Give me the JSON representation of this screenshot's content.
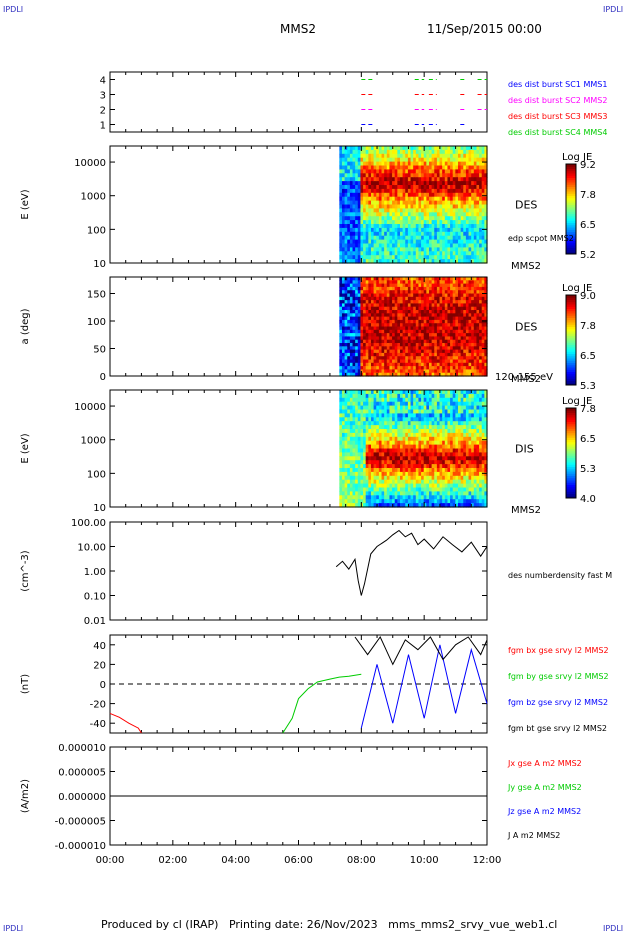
{
  "header": {
    "corner_tl": "IPDLI",
    "corner_tr": "IPDLI",
    "corner_bl": "IPDLI",
    "corner_br": "IPDLI",
    "spacecraft": "MMS2",
    "datetime": "11/Sep/2015 00:00"
  },
  "footer": {
    "text": "Produced by cl (IRAP)   Printing date: 26/Nov/2023   mms_mms2_srvy_vue_web1.cl"
  },
  "colors": {
    "red": "#ff0000",
    "green": "#00cc00",
    "blue": "#0000ff",
    "black": "#000000",
    "magenta": "#ff00ff",
    "label_blue": "#0000c0",
    "label_red": "#dd0000",
    "label_green": "#00bb00",
    "label_magenta": "#dd00dd"
  },
  "chart_data": [
    {
      "type": "line",
      "panel": "availability",
      "ylim": [
        0.5,
        4.5
      ],
      "yticks": [
        "1",
        "2",
        "3",
        "4"
      ],
      "series": [
        {
          "name": "des dist burst SC1 MMS1",
          "y": 1,
          "color": "#0000ff",
          "segments": [
            [
              8.0,
              8.35
            ],
            [
              9.7,
              10.0
            ],
            [
              10.15,
              10.4
            ],
            [
              11.15,
              11.3
            ]
          ]
        },
        {
          "name": "des dist burst SC2 MMS2",
          "y": 2,
          "color": "#ff00ff",
          "segments": [
            [
              8.0,
              8.35
            ],
            [
              9.7,
              10.0
            ],
            [
              10.15,
              10.4
            ],
            [
              11.15,
              11.3
            ],
            [
              11.7,
              12.0
            ]
          ]
        },
        {
          "name": "des dist burst SC3 MMS3",
          "y": 3,
          "color": "#ff0000",
          "segments": [
            [
              8.0,
              8.35
            ],
            [
              9.7,
              10.0
            ],
            [
              10.15,
              10.4
            ],
            [
              11.15,
              11.3
            ],
            [
              11.7,
              12.0
            ]
          ]
        },
        {
          "name": "des dist burst SC4 MMS4",
          "y": 4,
          "color": "#00cc00",
          "segments": [
            [
              8.0,
              8.35
            ],
            [
              9.7,
              10.0
            ],
            [
              10.15,
              10.4
            ],
            [
              11.15,
              11.3
            ],
            [
              11.7,
              12.0
            ]
          ]
        }
      ]
    },
    {
      "type": "heatmap",
      "panel": "des_energy",
      "ylabel": "E (eV)",
      "yscale": "log",
      "ylim": [
        10,
        30000
      ],
      "yticks": [
        "10",
        "100",
        "1000",
        "10000"
      ],
      "data_start_hour": 7.3,
      "instrument": "DES",
      "overlay_label": "edp scpot MMS2",
      "sc_label": "MMS2",
      "colorbar": {
        "title": "Log JE",
        "ticks": [
          "5.2",
          "6.5",
          "7.8",
          "9.2"
        ],
        "min": 5.2,
        "max": 9.2
      }
    },
    {
      "type": "heatmap",
      "panel": "des_pitch",
      "ylabel": "a (deg)",
      "ylim": [
        0,
        180
      ],
      "yticks": [
        "0",
        "50",
        "100",
        "150"
      ],
      "data_start_hour": 7.3,
      "instrument": "DES",
      "sc_label": "MMS2",
      "energy_range": "120-155 eV",
      "colorbar": {
        "title": "Log JE",
        "ticks": [
          "5.3",
          "6.5",
          "7.8",
          "9.0"
        ],
        "min": 5.3,
        "max": 9.0
      }
    },
    {
      "type": "heatmap",
      "panel": "dis_energy",
      "ylabel": "E (eV)",
      "yscale": "log",
      "ylim": [
        10,
        30000
      ],
      "yticks": [
        "10",
        "100",
        "1000",
        "10000"
      ],
      "data_start_hour": 7.3,
      "instrument": "DIS",
      "sc_label": "MMS2",
      "colorbar": {
        "title": "Log JE",
        "ticks": [
          "4.0",
          "5.3",
          "6.5",
          "7.8"
        ],
        "min": 4.0,
        "max": 7.8
      }
    },
    {
      "type": "line",
      "panel": "density",
      "ylabel": "(cm^-3)",
      "yscale": "log",
      "ylim": [
        0.01,
        100
      ],
      "yticks": [
        "0.01",
        "0.10",
        "1.00",
        "10.00",
        "100.00"
      ],
      "series": [
        {
          "name": "des numberdensity fast M",
          "color": "#000000",
          "x": [
            7.2,
            7.4,
            7.6,
            7.8,
            7.9,
            8.0,
            8.1,
            8.3,
            8.5,
            8.8,
            9.0,
            9.2,
            9.4,
            9.6,
            9.8,
            10.0,
            10.3,
            10.6,
            10.9,
            11.2,
            11.5,
            11.8,
            12.0
          ],
          "y": [
            1.5,
            2.5,
            1.2,
            3.0,
            0.4,
            0.1,
            0.3,
            5.0,
            10.0,
            18.0,
            30.0,
            45.0,
            25.0,
            35.0,
            12.0,
            20.0,
            8.0,
            25.0,
            12.0,
            6.0,
            15.0,
            4.0,
            10.0
          ]
        }
      ]
    },
    {
      "type": "line",
      "panel": "magnetic_field",
      "ylabel": "(nT)",
      "ylim": [
        -50,
        50
      ],
      "yticks": [
        "-40",
        "-20",
        "0",
        "20",
        "40"
      ],
      "series": [
        {
          "name": "fgm bx gse srvy l2 MMS2",
          "color": "#ff0000",
          "x": [
            0.0,
            0.3,
            0.6,
            0.9,
            1.0
          ],
          "y": [
            -30,
            -34,
            -40,
            -45,
            -50
          ]
        },
        {
          "name": "fgm by gse srvy l2 MMS2",
          "color": "#00cc00",
          "x": [
            5.5,
            5.8,
            6.0,
            6.3,
            6.6,
            7.0,
            7.3,
            7.6,
            8.0
          ],
          "y": [
            -50,
            -35,
            -15,
            -5,
            2,
            5,
            7,
            8,
            10
          ]
        },
        {
          "name": "fgm bz gse srvy l2 MMS2",
          "color": "#0000ff",
          "x": [
            8.0,
            8.5,
            9.0,
            9.5,
            10.0,
            10.5,
            11.0,
            11.5,
            12.0
          ],
          "y": [
            -45,
            20,
            -40,
            30,
            -35,
            40,
            -30,
            35,
            -20
          ]
        },
        {
          "name": "fgm bt gse srvy l2 MMS2",
          "color": "#000000",
          "x": [
            7.8,
            8.2,
            8.6,
            9.0,
            9.4,
            9.8,
            10.2,
            10.6,
            11.0,
            11.4,
            11.8,
            12.0
          ],
          "y": [
            48,
            30,
            48,
            20,
            45,
            35,
            48,
            25,
            40,
            48,
            30,
            45
          ]
        }
      ]
    },
    {
      "type": "line",
      "panel": "current_density",
      "ylabel": "(A/m2)",
      "ylim": [
        -1e-05,
        1e-05
      ],
      "yticks": [
        "-0.000010",
        "-0.000005",
        "0.000000",
        "0.000005",
        "0.000010"
      ],
      "xticks": [
        "00:00",
        "02:00",
        "04:00",
        "06:00",
        "08:00",
        "10:00",
        "12:00"
      ],
      "series": [
        {
          "name": "Jx gse A m2 MMS2",
          "color": "#ff0000"
        },
        {
          "name": "Jy gse A m2 MMS2",
          "color": "#00cc00"
        },
        {
          "name": "Jz gse A m2 MMS2",
          "color": "#0000ff"
        },
        {
          "name": "J A m2 MMS2",
          "color": "#000000"
        }
      ]
    }
  ]
}
